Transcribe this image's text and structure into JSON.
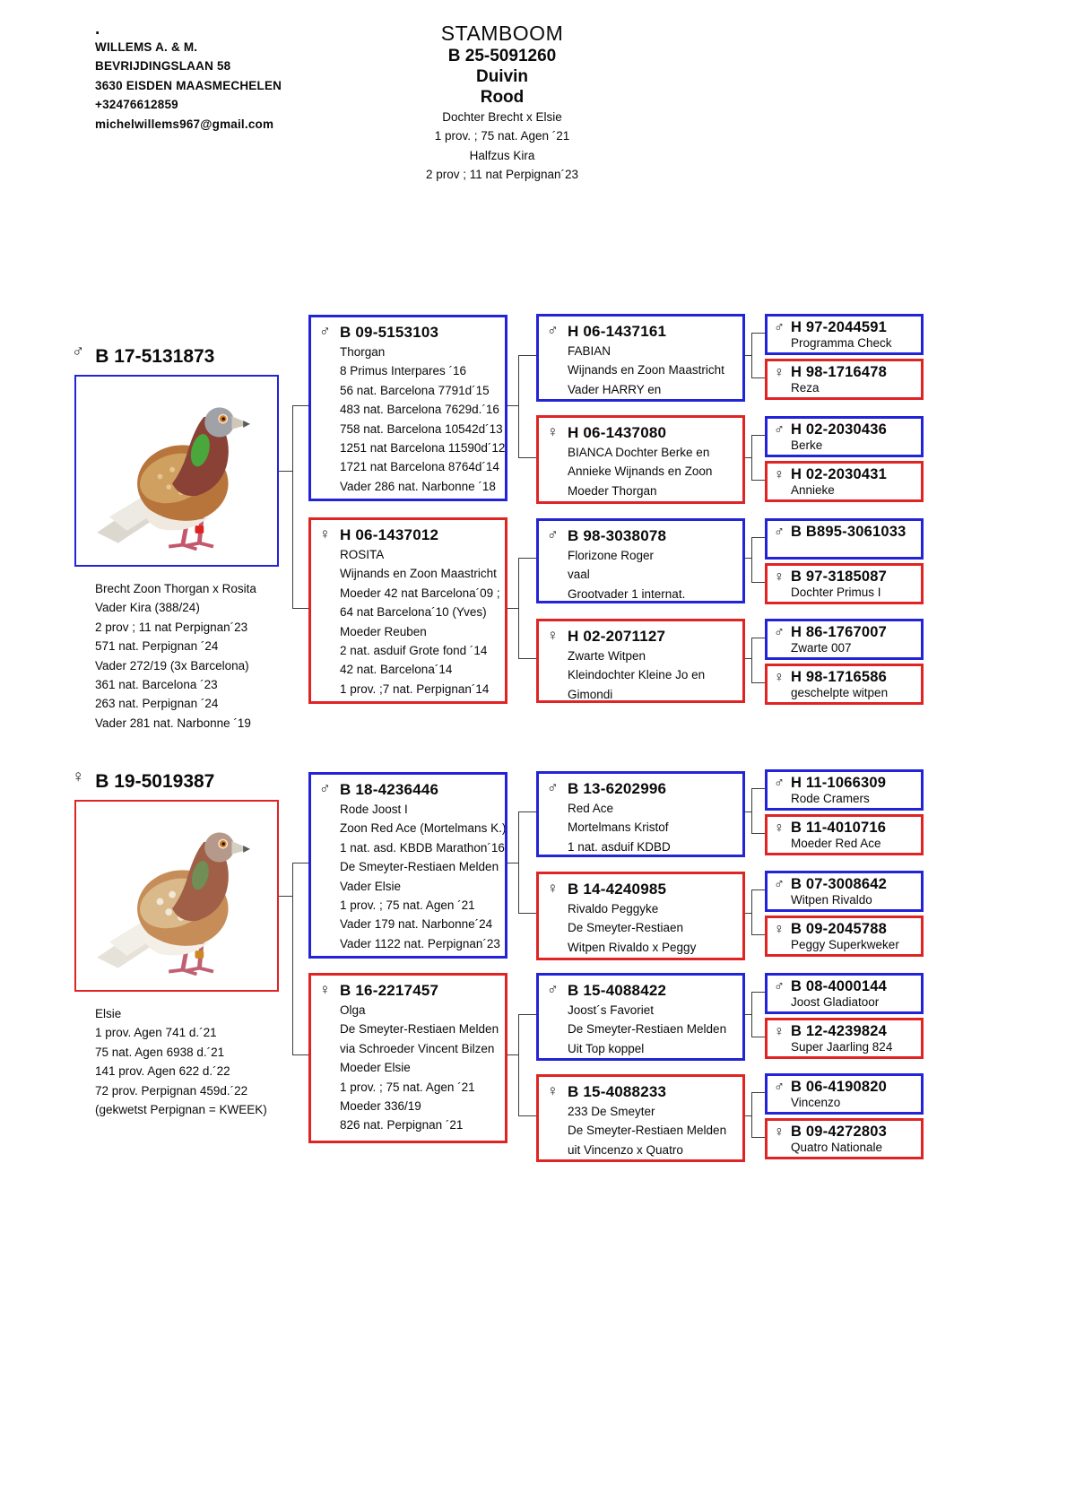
{
  "icons": {
    "male": "♂",
    "female": "♀"
  },
  "colors": {
    "male_border": "#2323d8",
    "female_border": "#e02424",
    "connector": "#3c3c3c"
  },
  "header": {
    "dot": ".",
    "owner": [
      "WILLEMS A. & M.",
      "BEVRIJDINGSLAAN 58",
      "3630 EISDEN MAASMECHELEN",
      "+32476612859",
      "michelwillems967@gmail.com"
    ],
    "title": "STAMBOOM",
    "ring": "B 25-5091260",
    "sex_label": "Duivin",
    "color_label": "Rood",
    "info": [
      "Dochter Brecht x Elsie",
      "1 prov. ; 75 nat. Agen ´21",
      "Halfzus Kira",
      "2 prov ; 11 nat Perpignan´23"
    ]
  },
  "subjects": {
    "sire": {
      "ring": "B 17-5131873",
      "notes": [
        "Brecht Zoon Thorgan x Rosita",
        "Vader Kira (388/24)",
        "2 prov ; 11 nat Perpignan´23",
        "571 nat. Perpignan ´24",
        "Vader 272/19 (3x Barcelona)",
        "361 nat. Barcelona ´23",
        "263 nat. Perpignan ´24",
        "Vader 281 nat. Narbonne ´19"
      ]
    },
    "dam": {
      "ring": "B 19-5019387",
      "notes": [
        "Elsie",
        "1 prov. Agen 741 d.´21",
        "75 nat. Agen 6938 d.´21",
        "141 prov. Agen 622 d.´22",
        "72 prov. Perpignan 459d.´22",
        "(gekwetst Perpignan = KWEEK)"
      ]
    }
  },
  "gen2": [
    {
      "ring": "B 09-5153103",
      "lines": [
        "Thorgan",
        "8 Primus Interpares ´16",
        "56 nat. Barcelona 7791d´15",
        "483 nat. Barcelona 7629d.´16",
        "758 nat. Barcelona 10542d´13",
        "1251 nat Barcelona 11590d´12",
        "1721 nat Barcelona 8764d´14",
        "Vader 286 nat. Narbonne ´18"
      ]
    },
    {
      "ring": "H 06-1437012",
      "lines": [
        "ROSITA",
        "Wijnands en Zoon Maastricht",
        "Moeder 42 nat Barcelona´09 ;",
        "64 nat Barcelona´10 (Yves)",
        "Moeder Reuben",
        "2 nat. asduif Grote fond ´14",
        "42 nat. Barcelona´14",
        "1 prov. ;7 nat. Perpignan´14"
      ]
    },
    {
      "ring": "B 18-4236446",
      "lines": [
        "Rode Joost I",
        "Zoon Red Ace (Mortelmans K.)",
        "1 nat. asd. KBDB Marathon´16",
        "De Smeyter-Restiaen Melden",
        "Vader Elsie",
        "1 prov. ; 75 nat. Agen ´21",
        "Vader 179 nat. Narbonne´24",
        "Vader 1122 nat. Perpignan´23"
      ]
    },
    {
      "ring": "B 16-2217457",
      "lines": [
        "Olga",
        "De Smeyter-Restiaen Melden",
        "via Schroeder Vincent Bilzen",
        "Moeder Elsie",
        "1 prov. ; 75 nat. Agen ´21",
        "Moeder 336/19",
        "826 nat. Perpignan ´21"
      ]
    }
  ],
  "gen3": [
    {
      "ring": "H 06-1437161",
      "lines": [
        "FABIAN",
        "Wijnands en Zoon Maastricht",
        "Vader HARRY en"
      ]
    },
    {
      "ring": "H 06-1437080",
      "lines": [
        "BIANCA Dochter Berke en",
        "Annieke Wijnands en Zoon",
        "Moeder Thorgan"
      ]
    },
    {
      "ring": "B 98-3038078",
      "lines": [
        "Florizone Roger",
        "vaal",
        "Grootvader 1 internat."
      ]
    },
    {
      "ring": "H 02-2071127",
      "lines": [
        "Zwarte Witpen",
        "Kleindochter Kleine Jo en",
        "Gimondi"
      ]
    },
    {
      "ring": "B 13-6202996",
      "lines": [
        "Red Ace",
        "Mortelmans Kristof",
        "1 nat. asduif KDBD"
      ]
    },
    {
      "ring": "B 14-4240985",
      "lines": [
        "Rivaldo Peggyke",
        "De Smeyter-Restiaen",
        "Witpen Rivaldo x Peggy"
      ]
    },
    {
      "ring": "B 15-4088422",
      "lines": [
        "Joost´s Favoriet",
        "De Smeyter-Restiaen Melden",
        "Uit Top koppel"
      ]
    },
    {
      "ring": "B 15-4088233",
      "lines": [
        "233 De Smeyter",
        "De Smeyter-Restiaen Melden",
        "uit Vincenzo x Quatro"
      ]
    }
  ],
  "gen4": [
    {
      "ring": "H 97-2044591",
      "name": "Programma Check"
    },
    {
      "ring": "H 98-1716478",
      "name": "Reza"
    },
    {
      "ring": "H 02-2030436",
      "name": "Berke"
    },
    {
      "ring": "H 02-2030431",
      "name": "Annieke"
    },
    {
      "ring": "B B895-3061033",
      "name": ""
    },
    {
      "ring": "B 97-3185087",
      "name": "Dochter Primus I"
    },
    {
      "ring": "H 86-1767007",
      "name": "Zwarte 007"
    },
    {
      "ring": "H 98-1716586",
      "name": "geschelpte witpen"
    },
    {
      "ring": "H 11-1066309",
      "name": "Rode Cramers"
    },
    {
      "ring": "B 11-4010716",
      "name": "Moeder Red Ace"
    },
    {
      "ring": "B 07-3008642",
      "name": "Witpen Rivaldo"
    },
    {
      "ring": "B 09-2045788",
      "name": "Peggy Superkweker"
    },
    {
      "ring": "B 08-4000144",
      "name": "Joost Gladiatoor"
    },
    {
      "ring": "B 12-4239824",
      "name": "Super Jaarling 824"
    },
    {
      "ring": "B 06-4190820",
      "name": "Vincenzo"
    },
    {
      "ring": "B 09-4272803",
      "name": "Quatro Nationale"
    }
  ]
}
